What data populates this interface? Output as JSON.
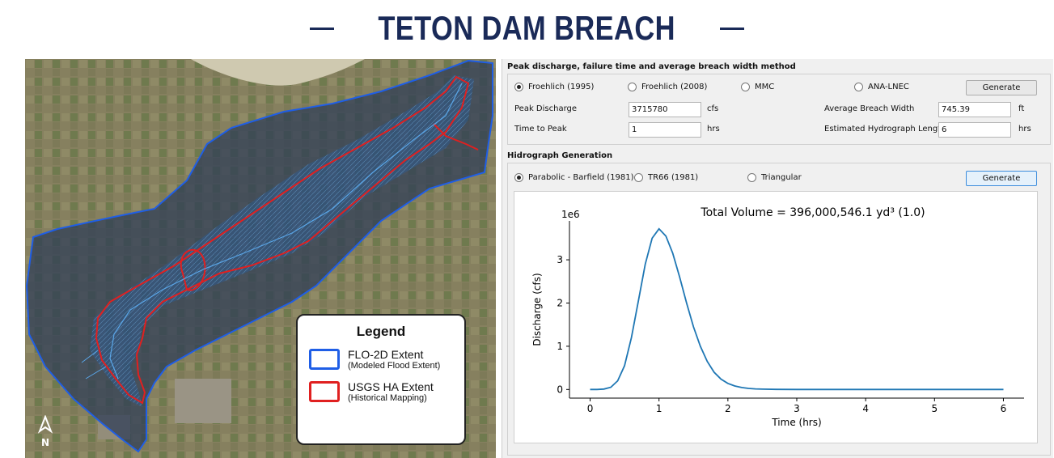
{
  "banner": {
    "title": "TETON DAM BREACH"
  },
  "map": {
    "legend_title": "Legend",
    "legend_items": [
      {
        "main": "FLO-2D Extent",
        "sub": "(Modeled Flood Extent)",
        "color": "#1f5ee6"
      },
      {
        "main": "USGS HA Extent",
        "sub": "(Historical Mapping)",
        "color": "#e02020"
      }
    ],
    "north_label": "N"
  },
  "dialog": {
    "peak_section_title": "Peak discharge, failure time and average breach width method",
    "methods": [
      "Froehlich (1995)",
      "Froehlich (2008)",
      "MMC",
      "ANA-LNEC"
    ],
    "selected_method": "Froehlich (1995)",
    "generate_label": "Generate",
    "peak_discharge_label": "Peak Discharge",
    "peak_discharge_value": "3715780",
    "peak_discharge_unit": "cfs",
    "time_to_peak_label": "Time to Peak",
    "time_to_peak_value": "1",
    "time_to_peak_unit": "hrs",
    "avg_breach_width_label": "Average Breach Width",
    "avg_breach_width_value": "745.39",
    "avg_breach_width_unit": "ft",
    "hydrograph_length_label": "Estimated Hydrograph Length",
    "hydrograph_length_value": "6",
    "hydrograph_length_unit": "hrs",
    "hydro_section_title": "Hidrograph Generation",
    "hydro_methods": [
      "Parabolic - Barfield (1981)",
      "TR66 (1981)",
      "Triangular"
    ],
    "selected_hydro_method": "Parabolic - Barfield (1981)",
    "generate2_label": "Generate"
  },
  "chart_data": {
    "type": "line",
    "title": "Total Volume = 396,000,546.1 yd³ (1.0)",
    "xlabel": "Time (hrs)",
    "ylabel": "Discharge (cfs)",
    "y_multiplier_label": "1e6",
    "xlim": [
      -0.3,
      6.3
    ],
    "ylim": [
      -0.2,
      3.9
    ],
    "xticks": [
      0,
      1,
      2,
      3,
      4,
      5,
      6
    ],
    "yticks": [
      0,
      1,
      2,
      3
    ],
    "color": "#1f77b4",
    "series": [
      {
        "x": [
          0,
          0.1,
          0.2,
          0.3,
          0.4,
          0.5,
          0.6,
          0.7,
          0.8,
          0.9,
          1.0,
          1.1,
          1.2,
          1.3,
          1.4,
          1.5,
          1.6,
          1.7,
          1.8,
          1.9,
          2.0,
          2.1,
          2.2,
          2.3,
          2.4,
          2.5,
          2.7,
          3.0,
          3.5,
          4.0,
          5.0,
          6.0
        ],
        "y": [
          0,
          0.001,
          0.01,
          0.05,
          0.2,
          0.55,
          1.2,
          2.05,
          2.9,
          3.5,
          3.716,
          3.55,
          3.15,
          2.6,
          2.0,
          1.45,
          1.0,
          0.65,
          0.4,
          0.24,
          0.14,
          0.08,
          0.045,
          0.025,
          0.013,
          0.007,
          0.002,
          0.0005,
          0,
          0,
          0,
          0
        ]
      }
    ]
  }
}
